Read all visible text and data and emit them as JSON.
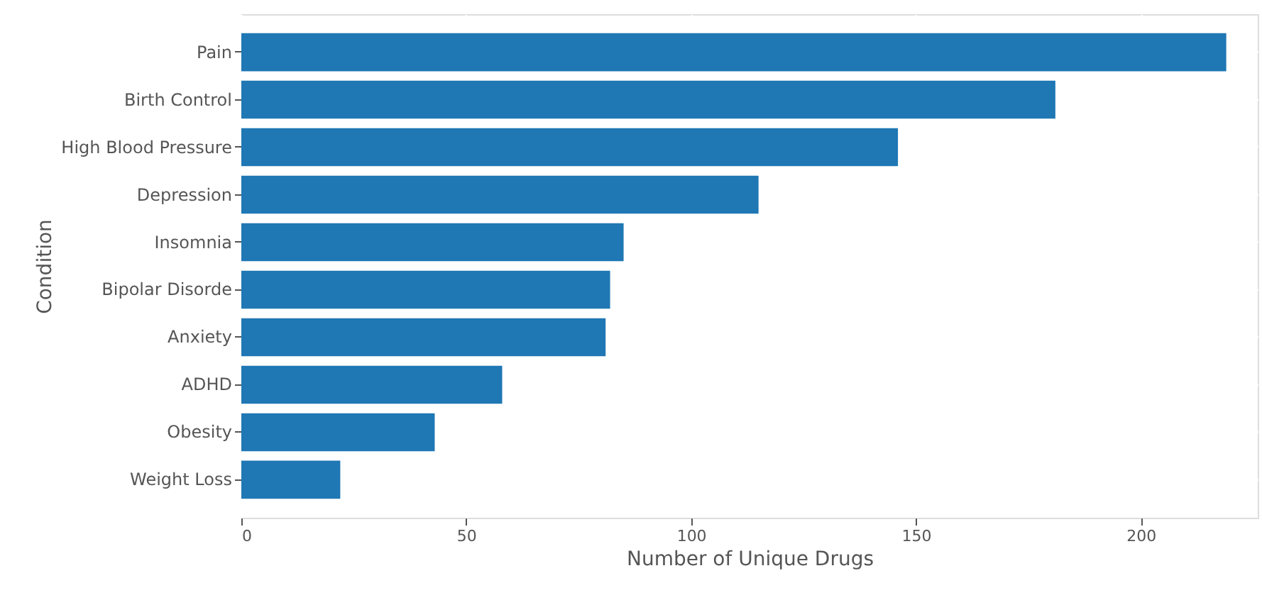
{
  "chart_data": {
    "type": "bar",
    "orientation": "horizontal",
    "xlabel": "Number of Unique Drugs",
    "ylabel": "Condition",
    "categories": [
      "Pain",
      "Birth Control",
      "High Blood Pressure",
      "Depression",
      "Insomnia",
      "Bipolar Disorde",
      "Anxiety",
      "ADHD",
      "Obesity",
      "Weight Loss"
    ],
    "values": [
      219,
      181,
      146,
      115,
      85,
      82,
      81,
      58,
      43,
      22
    ],
    "color": "#1f77b4",
    "xlim": [
      0,
      226
    ],
    "xticks": [
      0,
      50,
      100,
      150,
      200
    ],
    "grid": true
  }
}
